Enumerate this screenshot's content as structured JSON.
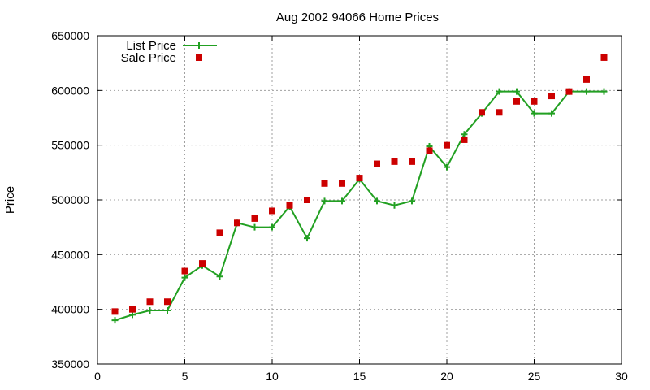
{
  "chart_data": {
    "type": "line",
    "title": "Aug 2002 94066 Home Prices",
    "xlabel": "",
    "ylabel": "Price",
    "xlim": [
      0,
      30
    ],
    "ylim": [
      350000,
      650000
    ],
    "xticks": [
      0,
      5,
      10,
      15,
      20,
      25,
      30
    ],
    "yticks": [
      350000,
      400000,
      450000,
      500000,
      550000,
      600000,
      650000
    ],
    "xtick_labels": [
      "0",
      "5",
      "10",
      "15",
      "20",
      "25",
      "30"
    ],
    "ytick_labels": [
      "350000",
      "400000",
      "450000",
      "500000",
      "550000",
      "600000",
      "650000"
    ],
    "grid": true,
    "legend_position": "top-left",
    "series": [
      {
        "name": "List Price",
        "style": "line-plus",
        "color": "#22a022",
        "x": [
          1,
          2,
          3,
          4,
          5,
          6,
          7,
          8,
          9,
          10,
          11,
          12,
          13,
          14,
          15,
          16,
          17,
          18,
          19,
          20,
          21,
          22,
          23,
          24,
          25,
          26,
          27,
          28,
          29
        ],
        "y": [
          390000,
          395000,
          399000,
          399000,
          429000,
          440000,
          430000,
          479000,
          475000,
          475000,
          494000,
          465000,
          499000,
          499000,
          519000,
          499000,
          495000,
          499000,
          549000,
          530000,
          560000,
          579000,
          599000,
          599000,
          579000,
          579000,
          599000,
          599000,
          599000
        ]
      },
      {
        "name": "Sale Price",
        "style": "square",
        "color": "#cc0000",
        "x": [
          1,
          2,
          3,
          4,
          5,
          6,
          7,
          8,
          9,
          10,
          11,
          12,
          13,
          14,
          15,
          16,
          17,
          18,
          19,
          20,
          21,
          22,
          23,
          24,
          25,
          26,
          27,
          28,
          29
        ],
        "y": [
          398000,
          400000,
          407000,
          407000,
          435000,
          442000,
          470000,
          479000,
          483000,
          490000,
          495000,
          500000,
          515000,
          515000,
          520000,
          533000,
          535000,
          535000,
          545000,
          550000,
          555000,
          580000,
          580000,
          590000,
          590000,
          595000,
          599000,
          610000,
          630000
        ]
      }
    ]
  }
}
